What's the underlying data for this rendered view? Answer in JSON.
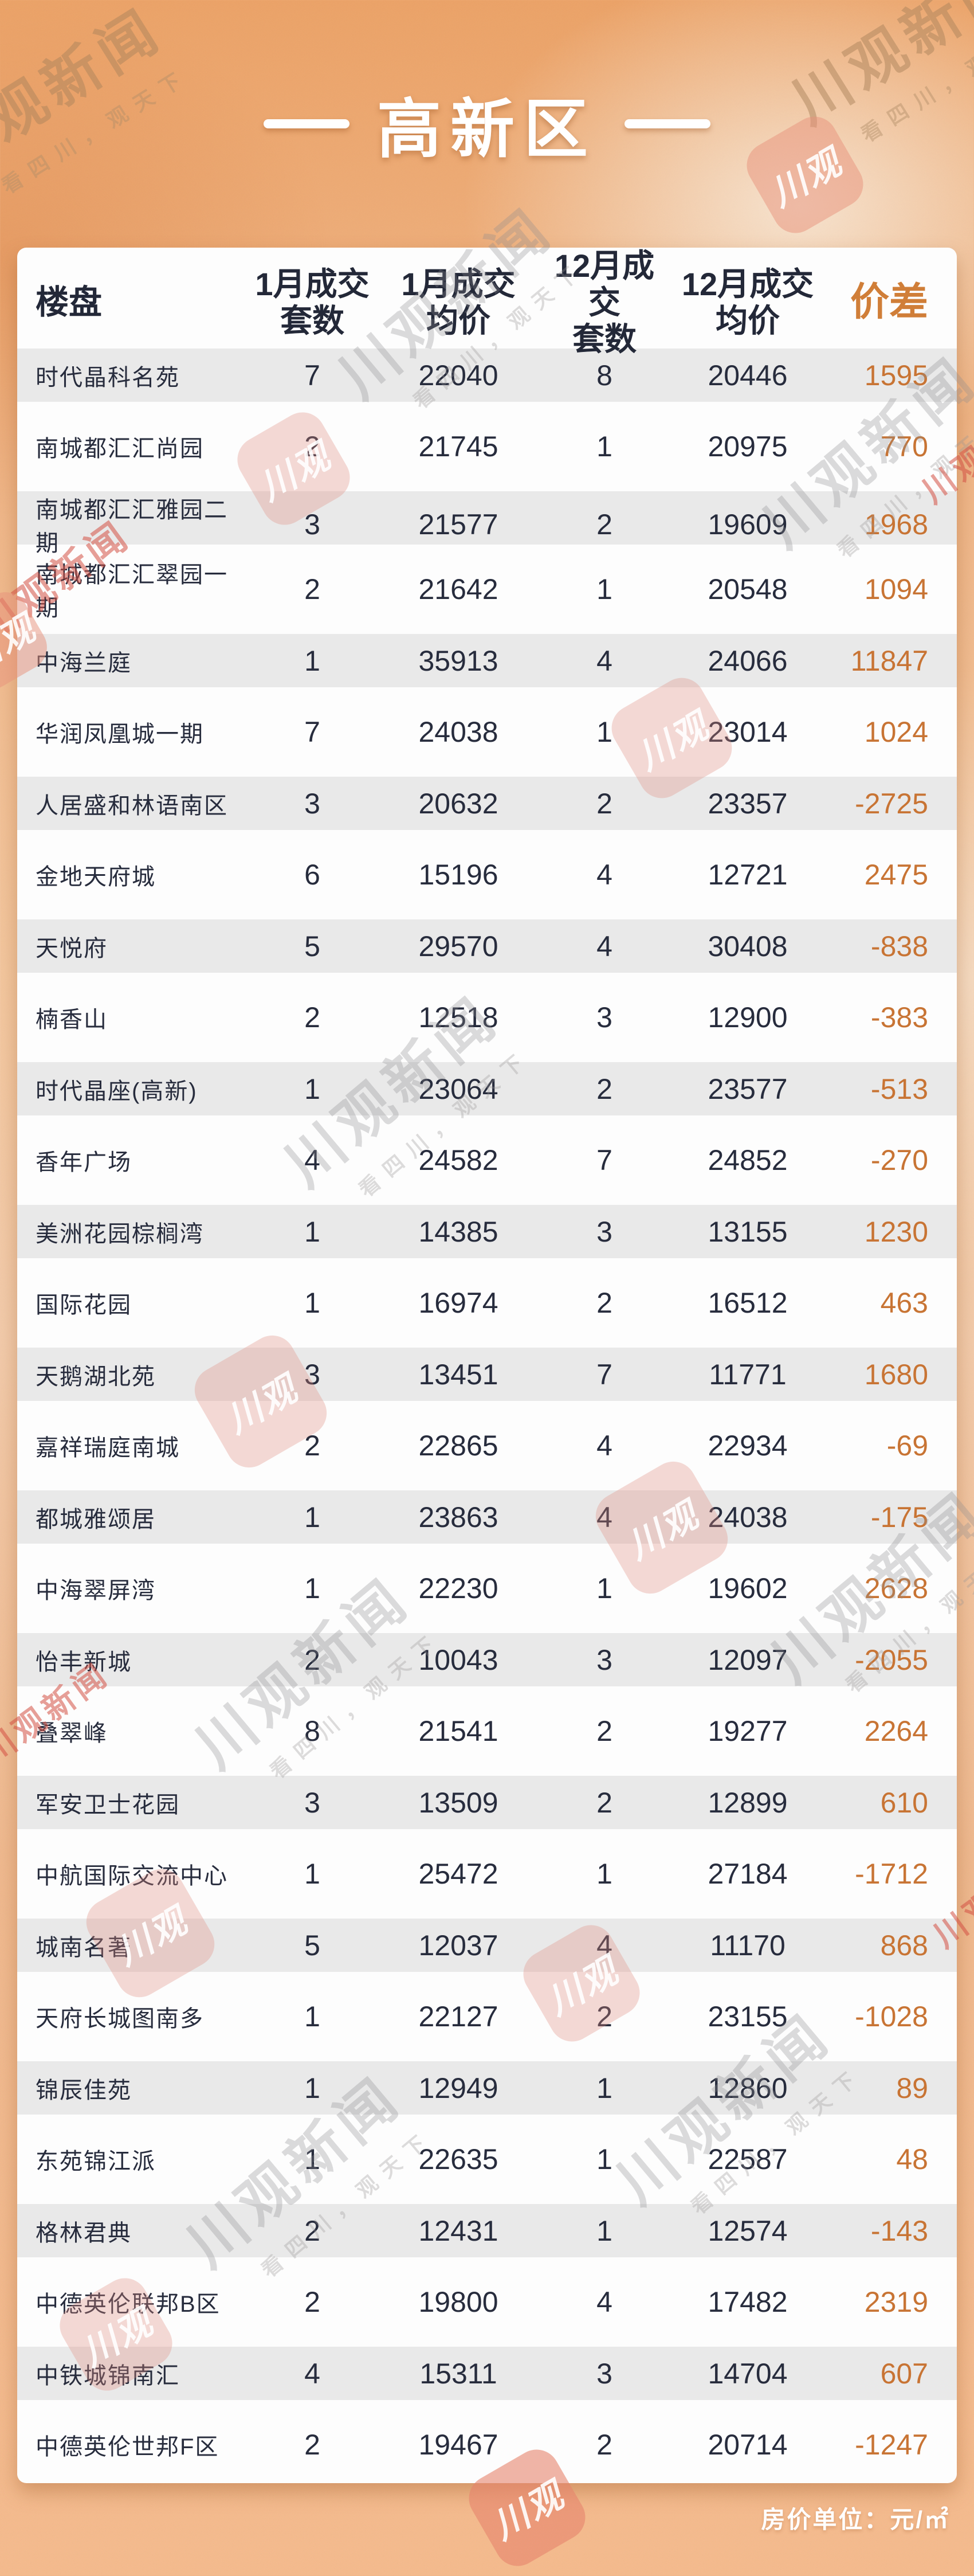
{
  "title": {
    "text": "高新区"
  },
  "chart_data": {
    "type": "table",
    "title": "高新区",
    "unit_note": "房价单位：元/㎡",
    "columns": [
      "楼盘",
      "1月成交套数",
      "1月成交均价",
      "12月成交套数",
      "12月成交均价",
      "价差"
    ],
    "rows": [
      [
        "时代晶科名苑",
        7,
        22040,
        8,
        20446,
        1595
      ],
      [
        "南城都汇汇尚园",
        2,
        21745,
        1,
        20975,
        770
      ],
      [
        "南城都汇汇雅园二期",
        3,
        21577,
        2,
        19609,
        1968
      ],
      [
        "南城都汇汇翠园一期",
        2,
        21642,
        1,
        20548,
        1094
      ],
      [
        "中海兰庭",
        1,
        35913,
        4,
        24066,
        11847
      ],
      [
        "华润凤凰城一期",
        7,
        24038,
        1,
        23014,
        1024
      ],
      [
        "人居盛和林语南区",
        3,
        20632,
        2,
        23357,
        -2725
      ],
      [
        "金地天府城",
        6,
        15196,
        4,
        12721,
        2475
      ],
      [
        "天悦府",
        5,
        29570,
        4,
        30408,
        -838
      ],
      [
        "楠香山",
        2,
        12518,
        3,
        12900,
        -383
      ],
      [
        "时代晶座(高新)",
        1,
        23064,
        2,
        23577,
        -513
      ],
      [
        "香年广场",
        4,
        24582,
        7,
        24852,
        -270
      ],
      [
        "美洲花园棕榈湾",
        1,
        14385,
        3,
        13155,
        1230
      ],
      [
        "国际花园",
        1,
        16974,
        2,
        16512,
        463
      ],
      [
        "天鹅湖北苑",
        3,
        13451,
        7,
        11771,
        1680
      ],
      [
        "嘉祥瑞庭南城",
        2,
        22865,
        4,
        22934,
        -69
      ],
      [
        "都城雅颂居",
        1,
        23863,
        4,
        24038,
        -175
      ],
      [
        "中海翠屏湾",
        1,
        22230,
        1,
        19602,
        2628
      ],
      [
        "怡丰新城",
        2,
        10043,
        3,
        12097,
        -2055
      ],
      [
        "叠翠峰",
        8,
        21541,
        2,
        19277,
        2264
      ],
      [
        "军安卫士花园",
        3,
        13509,
        2,
        12899,
        610
      ],
      [
        "中航国际交流中心",
        1,
        25472,
        1,
        27184,
        -1712
      ],
      [
        "城南名著",
        5,
        12037,
        4,
        11170,
        868
      ],
      [
        "天府长城图南多",
        1,
        22127,
        2,
        23155,
        -1028
      ],
      [
        "锦辰佳苑",
        1,
        12949,
        1,
        12860,
        89
      ],
      [
        "东苑锦江派",
        1,
        22635,
        1,
        22587,
        48
      ],
      [
        "格林君典",
        2,
        12431,
        1,
        12574,
        -143
      ],
      [
        "中德英伦联邦B区",
        2,
        19800,
        4,
        17482,
        2319
      ],
      [
        "中铁城锦南汇",
        4,
        15311,
        3,
        14704,
        607
      ],
      [
        "中德英伦世邦F区",
        2,
        19467,
        2,
        20714,
        -1247
      ]
    ]
  },
  "table": {
    "headers": [
      {
        "lines": [
          "楼盘"
        ]
      },
      {
        "lines": [
          "1月成交",
          "套数"
        ]
      },
      {
        "lines": [
          "1月成交",
          "均价"
        ]
      },
      {
        "lines": [
          "12月成交",
          "套数"
        ]
      },
      {
        "lines": [
          "12月成交",
          "均价"
        ]
      },
      {
        "lines": [
          "价差"
        ]
      }
    ]
  },
  "footer": {
    "unit_label": "房价单位：元/㎡"
  },
  "watermark": {
    "brand": "川观新闻",
    "slogan": "看四川，观天下",
    "logo": "川观"
  },
  "colors": {
    "accent_orange_header": "#d07e38",
    "diff_orange": "#c87434",
    "header_dark": "#232838",
    "stripe_gray": "#e9e9e9",
    "card_bg": "#fdfdfd",
    "bg_peach": "#f0b586"
  }
}
